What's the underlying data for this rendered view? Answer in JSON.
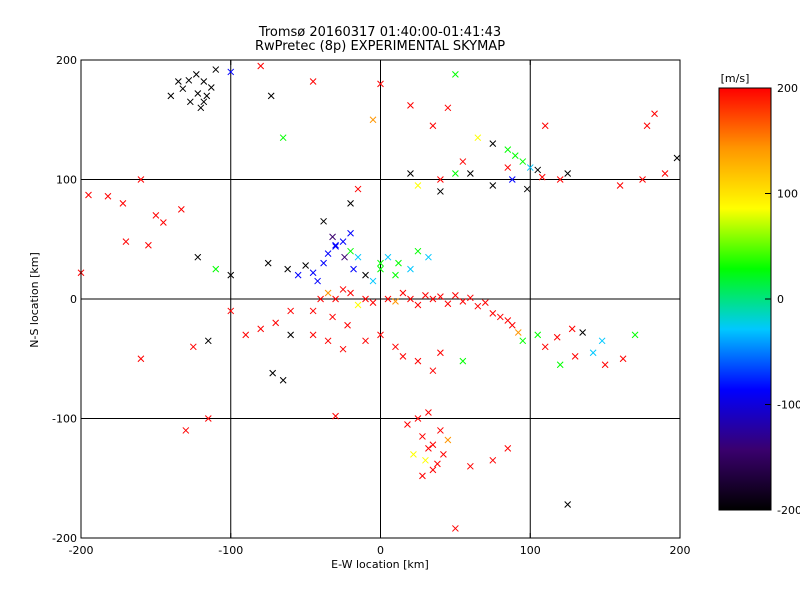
{
  "chart_data": {
    "type": "scatter",
    "title": "Tromsø 20160317 01:40:00-01:41:43",
    "subtitle": "RwPretec (8p) EXPERIMENTAL SKYMAP",
    "xlabel": "E-W location [km]",
    "ylabel": "N-S location [km]",
    "xlim": [
      -200,
      200
    ],
    "ylim": [
      -200,
      200
    ],
    "grid": true,
    "x_ticks": [
      "-200",
      "-100",
      "0",
      "100",
      "200"
    ],
    "y_ticks": [
      "-200",
      "-100",
      "0",
      "100",
      "200"
    ],
    "colorbar": {
      "label": "[m/s]",
      "range": [
        -200,
        200
      ],
      "ticks": [
        "200",
        "100",
        "0",
        "-100",
        "-200"
      ],
      "colormap": [
        "#000000",
        "#3a006e",
        "#0000ff",
        "#00c8ff",
        "#00ff00",
        "#ffff00",
        "#ff9600",
        "#ff0000"
      ]
    },
    "series": [
      {
        "marker": "x",
        "points": [
          [
            -123,
            188
          ],
          [
            -128,
            183
          ],
          [
            -118,
            182
          ],
          [
            -132,
            176
          ],
          [
            -122,
            172
          ],
          [
            -116,
            170
          ],
          [
            -127,
            165
          ],
          [
            -120,
            160
          ],
          [
            -113,
            177
          ],
          [
            -135,
            182
          ],
          [
            -110,
            192
          ],
          [
            -140,
            170
          ],
          [
            -118,
            165
          ],
          [
            -80,
            195
          ],
          [
            -73,
            170
          ],
          [
            -65,
            135
          ],
          [
            -100,
            190
          ],
          [
            -195,
            87
          ],
          [
            -182,
            86
          ],
          [
            -160,
            100
          ],
          [
            -172,
            80
          ],
          [
            -150,
            70
          ],
          [
            -133,
            75
          ],
          [
            -170,
            48
          ],
          [
            -155,
            45
          ],
          [
            -145,
            64
          ],
          [
            -122,
            35
          ],
          [
            -110,
            25
          ],
          [
            -100,
            20
          ],
          [
            -75,
            30
          ],
          [
            -62,
            25
          ],
          [
            -55,
            20
          ],
          [
            -45,
            22
          ],
          [
            -42,
            15
          ],
          [
            -35,
            38
          ],
          [
            -30,
            44
          ],
          [
            -50,
            28
          ],
          [
            -38,
            30
          ],
          [
            -24,
            35
          ],
          [
            -18,
            25
          ],
          [
            -25,
            48
          ],
          [
            -20,
            55
          ],
          [
            -32,
            52
          ],
          [
            -38,
            65
          ],
          [
            -30,
            45
          ],
          [
            -20,
            40
          ],
          [
            -15,
            35
          ],
          [
            0,
            30
          ],
          [
            5,
            35
          ],
          [
            12,
            30
          ],
          [
            20,
            25
          ],
          [
            25,
            40
          ],
          [
            32,
            35
          ],
          [
            10,
            20
          ],
          [
            0,
            25
          ],
          [
            -5,
            15
          ],
          [
            -10,
            20
          ],
          [
            -40,
            0
          ],
          [
            -35,
            5
          ],
          [
            -30,
            0
          ],
          [
            -20,
            5
          ],
          [
            -15,
            -5
          ],
          [
            -10,
            0
          ],
          [
            -5,
            -3
          ],
          [
            5,
            0
          ],
          [
            10,
            -2
          ],
          [
            15,
            5
          ],
          [
            20,
            0
          ],
          [
            25,
            -5
          ],
          [
            30,
            3
          ],
          [
            35,
            0
          ],
          [
            40,
            2
          ],
          [
            45,
            -4
          ],
          [
            50,
            3
          ],
          [
            55,
            -2
          ],
          [
            60,
            1
          ],
          [
            65,
            -6
          ],
          [
            70,
            -3
          ],
          [
            -25,
            8
          ],
          [
            -45,
            -10
          ],
          [
            -32,
            -15
          ],
          [
            -22,
            -22
          ],
          [
            75,
            -12
          ],
          [
            80,
            -15
          ],
          [
            85,
            -18
          ],
          [
            88,
            -22
          ],
          [
            92,
            -28
          ],
          [
            95,
            -35
          ],
          [
            105,
            -30
          ],
          [
            118,
            -32
          ],
          [
            128,
            -25
          ],
          [
            135,
            -28
          ],
          [
            148,
            -35
          ],
          [
            142,
            -45
          ],
          [
            162,
            -50
          ],
          [
            170,
            -30
          ],
          [
            150,
            -55
          ],
          [
            130,
            -48
          ],
          [
            110,
            -40
          ],
          [
            120,
            -55
          ],
          [
            -45,
            -30
          ],
          [
            -35,
            -35
          ],
          [
            -25,
            -42
          ],
          [
            -10,
            -35
          ],
          [
            0,
            -30
          ],
          [
            10,
            -40
          ],
          [
            15,
            -48
          ],
          [
            25,
            -52
          ],
          [
            35,
            -60
          ],
          [
            40,
            -45
          ],
          [
            55,
            -52
          ],
          [
            -60,
            -30
          ],
          [
            -72,
            -62
          ],
          [
            -65,
            -68
          ],
          [
            -30,
            -98
          ],
          [
            18,
            -105
          ],
          [
            25,
            -100
          ],
          [
            28,
            -115
          ],
          [
            32,
            -125
          ],
          [
            35,
            -122
          ],
          [
            40,
            -110
          ],
          [
            45,
            -118
          ],
          [
            30,
            -135
          ],
          [
            38,
            -138
          ],
          [
            22,
            -130
          ],
          [
            28,
            -148
          ],
          [
            42,
            -130
          ],
          [
            32,
            -95
          ],
          [
            35,
            -143
          ],
          [
            50,
            -192
          ],
          [
            60,
            -140
          ],
          [
            75,
            -135
          ],
          [
            85,
            -125
          ],
          [
            125,
            -172
          ],
          [
            -115,
            -100
          ],
          [
            -130,
            -110
          ],
          [
            -160,
            -50
          ],
          [
            -200,
            22
          ],
          [
            -125,
            -40
          ],
          [
            -115,
            -35
          ],
          [
            -100,
            -10
          ],
          [
            -45,
            182
          ],
          [
            -5,
            150
          ],
          [
            0,
            180
          ],
          [
            20,
            162
          ],
          [
            35,
            145
          ],
          [
            45,
            160
          ],
          [
            50,
            188
          ],
          [
            60,
            105
          ],
          [
            75,
            130
          ],
          [
            85,
            125
          ],
          [
            90,
            120
          ],
          [
            95,
            115
          ],
          [
            100,
            110
          ],
          [
            105,
            108
          ],
          [
            88,
            100
          ],
          [
            98,
            92
          ],
          [
            108,
            102
          ],
          [
            120,
            100
          ],
          [
            110,
            145
          ],
          [
            125,
            105
          ],
          [
            75,
            95
          ],
          [
            40,
            90
          ],
          [
            25,
            95
          ],
          [
            50,
            105
          ],
          [
            55,
            115
          ],
          [
            40,
            100
          ],
          [
            20,
            105
          ],
          [
            -15,
            92
          ],
          [
            -20,
            80
          ],
          [
            65,
            135
          ],
          [
            85,
            110
          ],
          [
            160,
            95
          ],
          [
            178,
            145
          ],
          [
            183,
            155
          ],
          [
            198,
            118
          ],
          [
            190,
            105
          ],
          [
            175,
            100
          ],
          [
            -60,
            -10
          ],
          [
            -70,
            -20
          ],
          [
            -80,
            -25
          ],
          [
            -90,
            -30
          ]
        ],
        "colors": [
          "#000000",
          "#000000",
          "#000000",
          "#000000",
          "#000000",
          "#000000",
          "#000000",
          "#000000",
          "#000000",
          "#000000",
          "#000000",
          "#000000",
          "#000000",
          "#ff0000",
          "#000000",
          "#00ff00",
          "#0000ff",
          "#ff0000",
          "#ff0000",
          "#ff0000",
          "#ff0000",
          "#ff0000",
          "#ff0000",
          "#ff0000",
          "#ff0000",
          "#ff0000",
          "#000000",
          "#00ff00",
          "#000000",
          "#000000",
          "#000000",
          "#0000ff",
          "#0000ff",
          "#0000ff",
          "#0000ff",
          "#0000ff",
          "#000000",
          "#0000ff",
          "#3a006e",
          "#0000ff",
          "#0000ff",
          "#0000ff",
          "#3a006e",
          "#000000",
          "#0000ff",
          "#00ff00",
          "#00c8ff",
          "#00ff00",
          "#00c8ff",
          "#00ff00",
          "#00c8ff",
          "#00ff00",
          "#00c8ff",
          "#00ff00",
          "#00ff00",
          "#00c8ff",
          "#000000",
          "#ff0000",
          "#ff9600",
          "#ff0000",
          "#ff0000",
          "#ffff00",
          "#ff0000",
          "#ff0000",
          "#ff0000",
          "#ff9600",
          "#ff0000",
          "#ff0000",
          "#ff0000",
          "#ff0000",
          "#ff0000",
          "#ff0000",
          "#ff0000",
          "#ff0000",
          "#ff0000",
          "#ff0000",
          "#ff0000",
          "#ff0000",
          "#ff0000",
          "#ff0000",
          "#ff0000",
          "#ff0000",
          "#ff0000",
          "#ff0000",
          "#ff0000",
          "#ff0000",
          "#ff9600",
          "#00ff00",
          "#00ff00",
          "#ff0000",
          "#ff0000",
          "#000000",
          "#00c8ff",
          "#00c8ff",
          "#ff0000",
          "#00ff00",
          "#ff0000",
          "#ff0000",
          "#ff0000",
          "#00ff00",
          "#ff0000",
          "#ff0000",
          "#ff0000",
          "#ff0000",
          "#ff0000",
          "#ff0000",
          "#ff0000",
          "#ff0000",
          "#ff0000",
          "#ff0000",
          "#00ff00",
          "#000000",
          "#000000",
          "#000000",
          "#ff0000",
          "#ff0000",
          "#ff0000",
          "#ff0000",
          "#ff0000",
          "#ff0000",
          "#ff0000",
          "#ff9600",
          "#ffff00",
          "#ff0000",
          "#ffff00",
          "#ff0000",
          "#ff0000",
          "#ff0000",
          "#ff0000",
          "#ff0000",
          "#ff0000",
          "#ff0000",
          "#ff0000",
          "#000000",
          "#ff0000",
          "#ff0000",
          "#ff0000",
          "#ff0000",
          "#ff0000",
          "#000000",
          "#ff0000",
          "#ff0000",
          "#ff9600",
          "#ff0000",
          "#ff0000",
          "#ff0000",
          "#ff0000",
          "#00ff00",
          "#000000",
          "#000000",
          "#00ff00",
          "#00ff00",
          "#00ff00",
          "#00c8ff",
          "#000000",
          "#0000ff",
          "#000000",
          "#ff0000",
          "#ff0000",
          "#ff0000",
          "#000000",
          "#000000",
          "#000000",
          "#ffff00",
          "#00ff00",
          "#ff0000",
          "#ff0000",
          "#000000",
          "#ff0000",
          "#000000",
          "#ffff00",
          "#ff0000",
          "#ff0000",
          "#ff0000",
          "#ff0000",
          "#000000",
          "#ff0000",
          "#ff0000",
          "#ff0000",
          "#ff0000",
          "#ff0000"
        ]
      },
      {
        "marker": "dot",
        "points": [],
        "colors": []
      }
    ]
  }
}
